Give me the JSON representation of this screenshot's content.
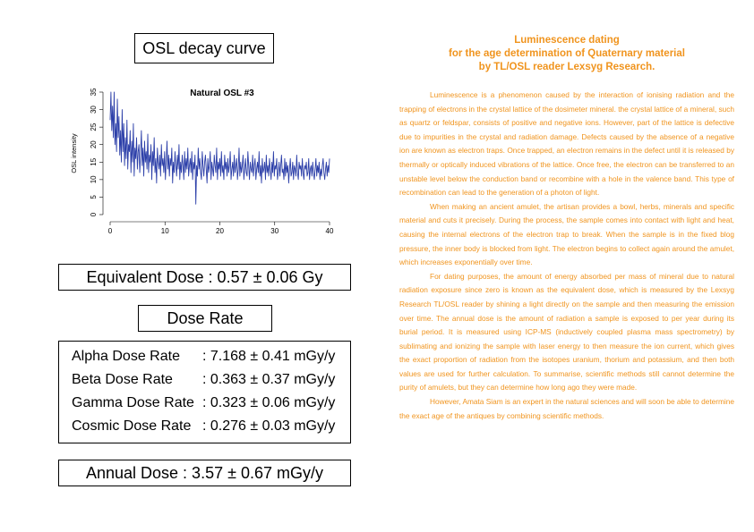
{
  "osl": {
    "box_title": "OSL decay curve"
  },
  "chart_data": {
    "type": "line",
    "title": "Natural OSL #3",
    "xlabel": "",
    "ylabel": "OSL intensity",
    "xlim": [
      0,
      40
    ],
    "ylim": [
      0,
      35
    ],
    "xticks": [
      0,
      10,
      20,
      30,
      40
    ],
    "yticks": [
      0,
      5,
      10,
      15,
      20,
      25,
      30,
      35
    ],
    "grid": false,
    "series_color": "#2b3ea8",
    "series": [
      {
        "values": [
          27,
          35,
          24,
          31,
          22,
          35,
          20,
          26,
          18,
          33,
          22,
          28,
          17,
          24,
          15,
          30,
          18,
          26,
          14,
          22,
          16,
          27,
          13,
          20,
          18,
          24,
          12,
          21,
          15,
          26,
          11,
          19,
          16,
          22,
          13,
          18,
          20,
          12,
          17,
          24,
          14,
          19,
          11,
          21,
          15,
          18,
          13,
          23,
          12,
          17,
          15,
          20,
          10,
          18,
          14,
          22,
          12,
          16,
          9,
          19,
          15,
          13,
          17,
          11,
          20,
          14,
          16,
          12,
          18,
          10,
          15,
          21,
          13,
          17,
          11,
          16,
          14,
          19,
          9,
          15,
          12,
          18,
          14,
          11,
          17,
          13,
          20,
          10,
          15,
          12,
          17,
          14,
          10,
          18,
          12,
          16,
          13,
          19,
          11,
          14,
          16,
          12,
          18,
          10,
          15,
          13,
          17,
          3,
          14,
          11,
          19,
          13,
          16,
          12,
          10,
          18,
          14,
          11,
          15,
          17,
          13,
          9,
          16,
          12,
          14,
          18,
          10,
          15,
          13,
          11,
          17,
          14,
          12,
          19,
          10,
          15,
          13,
          16,
          11,
          18,
          12,
          14,
          10,
          17,
          13,
          15,
          11,
          16,
          12,
          14,
          18,
          10,
          13,
          15,
          11,
          17,
          12,
          14,
          16,
          10,
          13,
          19,
          11,
          15,
          12,
          14,
          17,
          10,
          13,
          16,
          12,
          11,
          18,
          14,
          10,
          15,
          13,
          12,
          17,
          11,
          14,
          16,
          10,
          13,
          15,
          12,
          18,
          11,
          14,
          9,
          16,
          12,
          13,
          15,
          10,
          17,
          12,
          14,
          11,
          16,
          13,
          10,
          15,
          12,
          18,
          11,
          14,
          13,
          16,
          10,
          12,
          15,
          11,
          14,
          17,
          12,
          13,
          10,
          16,
          11,
          15,
          12,
          14,
          9,
          13,
          16,
          11,
          12,
          15,
          10,
          14,
          13,
          11,
          17,
          12,
          10,
          15,
          13,
          14,
          11,
          16,
          12,
          10,
          14,
          13,
          15,
          11,
          12,
          16,
          10,
          13,
          14,
          11,
          15,
          12,
          10,
          13,
          16,
          11,
          14,
          12,
          15,
          10,
          13,
          11,
          14,
          16,
          12,
          10,
          13,
          15,
          11,
          14,
          12,
          16
        ]
      }
    ]
  },
  "equivalent_dose": "Equivalent Dose : 0.57 ± 0.06 Gy",
  "dose_rate": {
    "box_title": "Dose Rate",
    "rows": [
      {
        "name": "Alpha Dose Rate",
        "value": ": 7.168 ± 0.41 mGy/y"
      },
      {
        "name": "Beta Dose Rate",
        "value": ": 0.363 ± 0.37 mGy/y"
      },
      {
        "name": "Gamma Dose Rate",
        "value": ": 0.323 ± 0.06 mGy/y"
      },
      {
        "name": "Cosmic Dose Rate",
        "value": ": 0.276 ± 0.03 mGy/y"
      }
    ]
  },
  "annual_dose": "Annual Dose : 3.57 ± 0.67 mGy/y",
  "article": {
    "heading_lines": [
      "Luminescence dating",
      "for the age determination of Quaternary material",
      "by TL/OSL reader Lexsyg Research."
    ],
    "paragraphs": [
      "Luminescence is a phenomenon caused by the interaction of ionising radiation and the trapping of electrons in the crystal lattice of the dosimeter mineral. the crystal lattice of a mineral, such as quartz or feldspar, consists of positive and negative ions. However, part of the lattice is defective due to impurities in the crystal and radiation damage. Defects caused by the absence of a negative ion are known as electron traps. Once trapped, an electron remains in the defect until it is released by thermally or optically induced vibrations of the lattice. Once free, the electron can be transferred to an unstable level below the conduction band or recombine with a hole in the valence band. This type of recombination can lead to the generation of a photon of light.",
      "When making an ancient amulet, the artisan provides a bowl, herbs, minerals and specific material and cuts it precisely. During the process, the sample comes into contact with light and heat, causing the internal electrons of the electron trap to break. When the sample is in the fixed blog pressure, the inner body is blocked from light. The electron begins to collect again around the amulet, which increases exponentially over time.",
      "For dating purposes, the amount of energy absorbed per mass of mineral due to natural radiation exposure since zero is known as the equivalent dose, which is measured by the Lexsyg Research TL/OSL reader by shining a light directly on the sample and then measuring the emission over time. The annual dose is the amount of radiation a sample is exposed to per year during its burial period. It is measured using ICP-MS (inductively coupled plasma mass spectrometry) by sublimating and ionizing the sample with laser energy to then measure the ion current, which gives the exact proportion of radiation from the isotopes uranium, thorium and potassium, and then both values are used for further calculation. To summarise, scientific methods still cannot determine the purity of amulets, but they can determine how long ago they were made.",
      "However, Amata Siam is an expert in the natural sciences and will soon be able to determine the exact age of the antiques by combining scientific methods."
    ]
  }
}
